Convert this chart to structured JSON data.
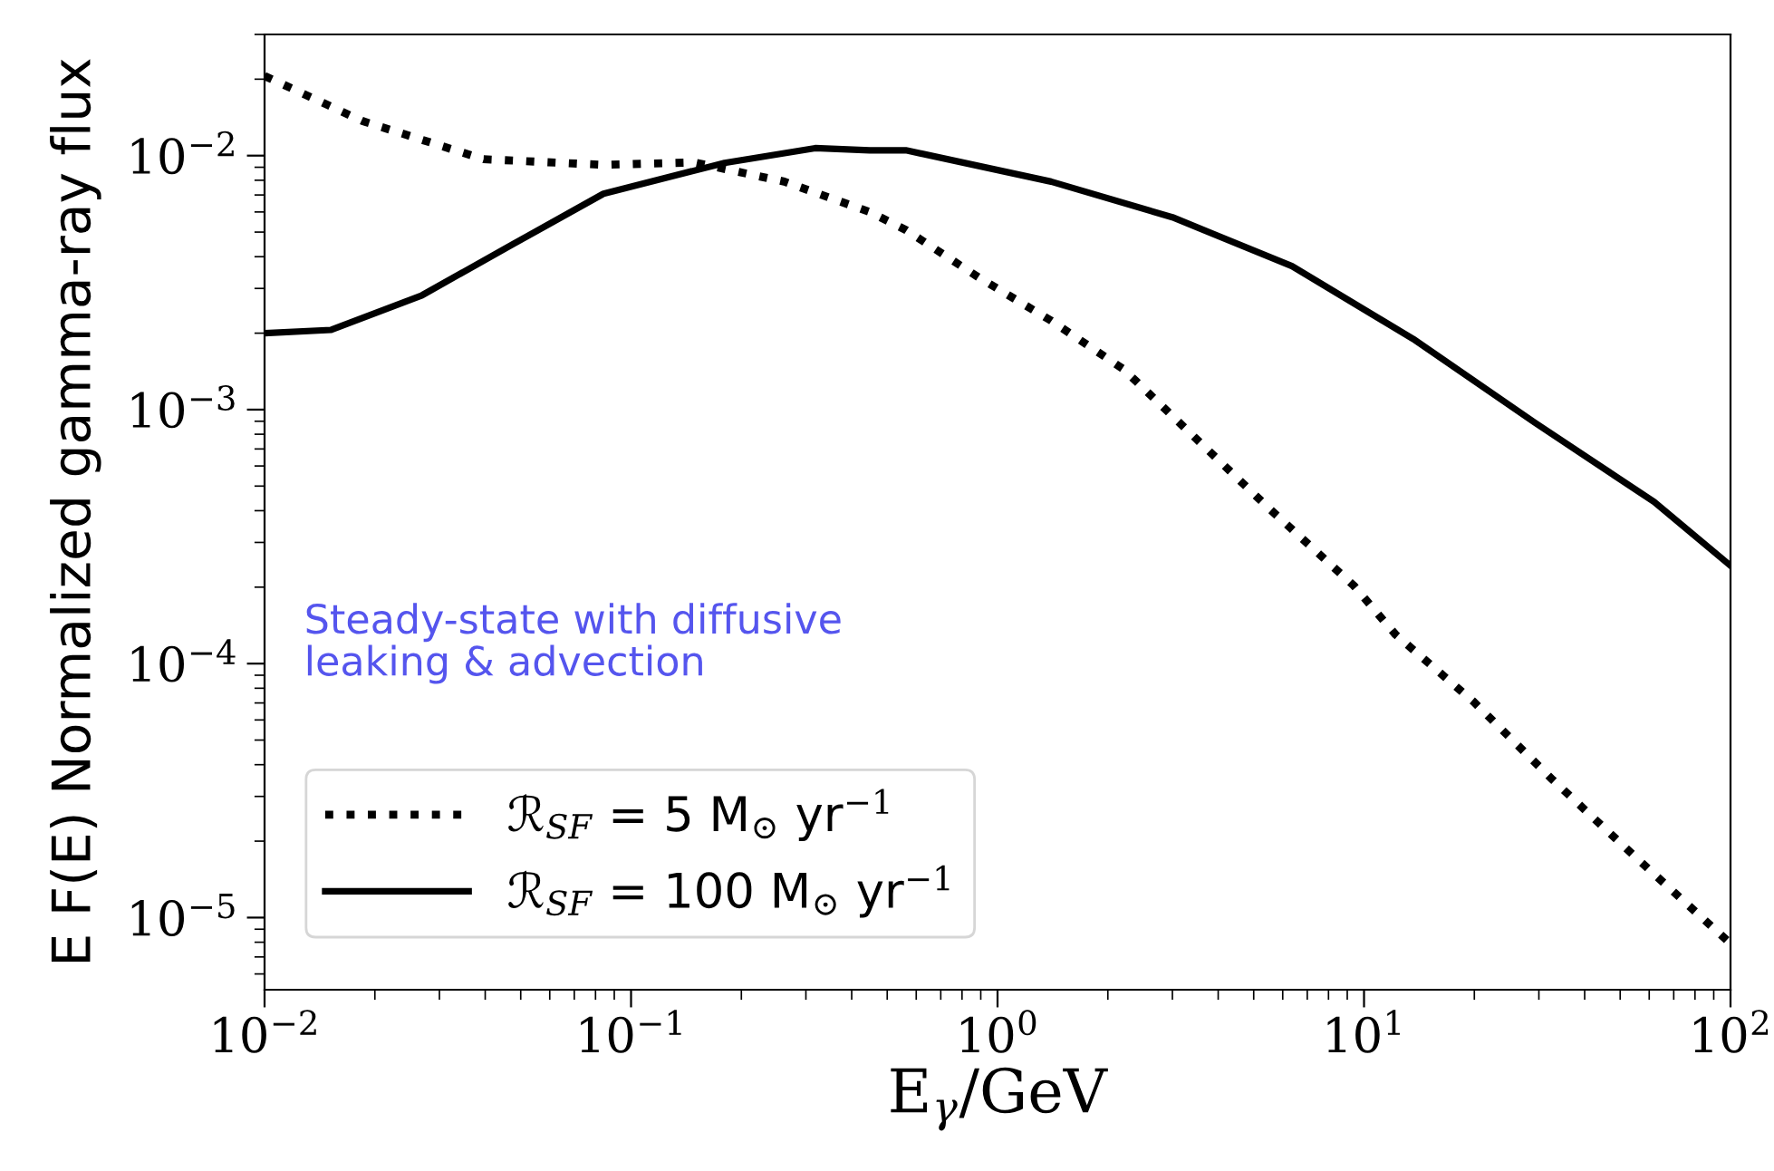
{
  "chart_data": {
    "type": "line",
    "xlabel": "E$_{γ}$/GeV",
    "ylabel": "E F(E) Normalized gamma-ray flux",
    "log": "xy",
    "xlim": [
      0.01,
      100
    ],
    "ylim": [
      5.2e-06,
      0.03
    ],
    "xticks": [
      {
        "value": 0.01,
        "label": "10$^{−2}$"
      },
      {
        "value": 0.1,
        "label": "10$^{−1}$"
      },
      {
        "value": 1,
        "label": "10$^{0}$"
      },
      {
        "value": 10,
        "label": "10$^{1}$"
      },
      {
        "value": 100,
        "label": "10$^{2}$"
      }
    ],
    "yticks": [
      {
        "value": 1e-05,
        "label": "10$^{−5}$"
      },
      {
        "value": 0.0001,
        "label": "10$^{−4}$"
      },
      {
        "value": 0.001,
        "label": "10$^{−3}$"
      },
      {
        "value": 0.01,
        "label": "10$^{−2}$"
      }
    ],
    "grid": false,
    "legend": "bottom left",
    "annotations": [
      "Steady-state with diffusive\nleaking & advection"
    ],
    "series": [
      {
        "name": "ℛ$_{SF}$ = 5 M$_{⊙}$ yr$^{−1}$",
        "color": "#000000",
        "line_style": "dotted",
        "x": [
          0.01,
          0.0185,
          0.0396,
          0.0841,
          0.1486,
          0.262,
          0.448,
          0.562,
          0.887,
          1.4,
          2.21,
          3.48,
          5.48,
          9.37,
          12.2,
          19.9,
          32.7,
          55.3,
          100
        ],
        "values": [
          0.0206,
          0.01368,
          0.00968,
          0.0092,
          0.0094,
          0.0079,
          0.006,
          0.0051,
          0.00332,
          0.00224,
          0.00144,
          0.000769,
          0.000411,
          0.000203,
          0.00013,
          7.08e-05,
          3.49e-05,
          1.72e-05,
          7.9e-06
        ]
      },
      {
        "name": "ℛ$_{SF}$ = 100 M$_{⊙}$ yr$^{−1}$",
        "color": "#000000",
        "line_style": "solid",
        "x": [
          0.01,
          0.0152,
          0.0269,
          0.0475,
          0.0841,
          0.18,
          0.318,
          0.448,
          0.562,
          1.4,
          3.0,
          6.36,
          13.6,
          29.2,
          61.9,
          100
        ],
        "values": [
          0.002,
          0.00206,
          0.00282,
          0.00447,
          0.00708,
          0.00936,
          0.0107,
          0.0105,
          0.0105,
          0.0079,
          0.00572,
          0.00367,
          0.0019,
          0.00089,
          0.000433,
          0.000243
        ]
      }
    ]
  }
}
